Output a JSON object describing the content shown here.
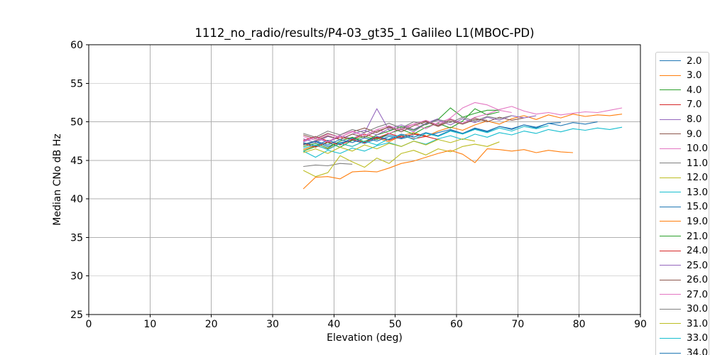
{
  "figure": {
    "background": "#ffffff",
    "text_color": "#000000"
  },
  "chart_data": {
    "type": "line",
    "title": "1112_no_radio/results/P4-03_gt35_1 Galileo L1(MBOC-PD)",
    "xlabel": "Elevation (deg)",
    "ylabel": "Median CNo dB Hz",
    "xlim": [
      0,
      90
    ],
    "ylim": [
      25,
      60
    ],
    "xticks": [
      0,
      10,
      20,
      30,
      40,
      50,
      60,
      70,
      80,
      90
    ],
    "yticks": [
      25,
      30,
      35,
      40,
      45,
      50,
      55,
      60
    ],
    "grid": true,
    "grid_color": "#b0b0b0",
    "spine_color": "#000000",
    "legend_position": "right-outside",
    "legend_clipped_at_bottom": true,
    "series": [
      {
        "name": "2.0",
        "color": "#1f77b4",
        "x0": 35,
        "dx": 2,
        "values": [
          47.0,
          47.4,
          46.8,
          47.3,
          47.6,
          47.2,
          47.8,
          48.3,
          47.9,
          48.4,
          48.1,
          48.6,
          49.0,
          48.5,
          49.2,
          48.8,
          49.4,
          49.1,
          49.6,
          49.3,
          49.8,
          49.5,
          49.9,
          49.7,
          50.0
        ]
      },
      {
        "name": "3.0",
        "color": "#ff7f0e",
        "x0": 35,
        "dx": 2,
        "values": [
          46.4,
          46.9,
          46.5,
          47.2,
          46.8,
          47.5,
          47.9,
          47.4,
          48.2,
          48.6,
          48.1,
          48.8,
          49.3,
          48.9,
          49.6,
          50.1,
          49.7,
          50.4,
          50.8,
          50.3,
          50.9,
          50.5,
          51.0,
          50.7,
          50.9,
          50.8,
          51.0
        ]
      },
      {
        "name": "4.0",
        "color": "#2ca02c",
        "x0": 35,
        "dx": 2,
        "values": [
          46.2,
          46.8,
          47.3,
          46.7,
          47.6,
          48.1,
          47.7,
          48.5,
          49.0,
          48.4,
          49.3,
          49.8,
          49.2,
          50.1,
          51.7,
          50.9,
          51.3
        ]
      },
      {
        "name": "7.0",
        "color": "#d62728",
        "x0": 35,
        "dx": 2,
        "values": [
          47.6,
          48.1,
          47.5,
          48.0,
          47.7,
          48.4,
          47.9,
          48.5,
          48.0,
          48.4,
          48.2
        ]
      },
      {
        "name": "8.0",
        "color": "#9467bd",
        "x0": 35,
        "dx": 2,
        "values": [
          47.4,
          48.0,
          47.3,
          48.2,
          47.8,
          48.6,
          51.7,
          48.9,
          49.4,
          48.7,
          49.8,
          50.4
        ]
      },
      {
        "name": "9.0",
        "color": "#8c564b",
        "x0": 35,
        "dx": 2,
        "values": [
          48.3,
          47.8,
          48.5,
          48.0,
          48.7,
          49.2,
          48.6,
          49.4,
          49.0,
          49.7,
          50.1,
          49.5,
          50.3,
          49.8,
          50.5,
          50.0,
          50.6,
          50.2,
          50.5
        ]
      },
      {
        "name": "10.0",
        "color": "#e377c2",
        "x0": 35,
        "dx": 2,
        "values": [
          48.1,
          47.6,
          48.4,
          48.0,
          48.7,
          48.2,
          49.0,
          48.5,
          49.2,
          49.7,
          49.1,
          49.9,
          50.4,
          49.8,
          50.6,
          51.0,
          51.6,
          52.0,
          51.4,
          51.0,
          51.2,
          50.9,
          51.1,
          51.3,
          51.2,
          51.5,
          51.8
        ]
      },
      {
        "name": "11.0",
        "color": "#7f7f7f",
        "x0": 35,
        "dx": 2,
        "values": [
          44.2,
          44.4,
          44.3,
          44.6,
          44.5
        ]
      },
      {
        "name": "12.0",
        "color": "#bcbd22",
        "x0": 35,
        "dx": 2,
        "values": [
          43.7,
          42.9,
          43.4,
          45.6,
          44.8,
          44.1,
          45.3,
          44.6,
          45.9,
          46.3,
          45.7,
          46.5,
          46.1,
          46.8,
          47.1,
          46.8,
          47.4
        ]
      },
      {
        "name": "13.0",
        "color": "#17becf",
        "x0": 35,
        "dx": 2,
        "values": [
          46.2,
          45.4,
          46.3,
          45.9,
          46.6,
          46.2,
          46.9,
          47.3,
          46.8,
          47.5,
          47.1,
          47.8,
          48.2,
          47.7,
          48.4,
          48.0,
          48.6,
          48.3,
          48.8,
          48.5,
          49.0,
          48.7,
          49.1,
          48.9,
          49.2,
          49.0,
          49.3
        ]
      },
      {
        "name": "15.0",
        "color": "#1f77b4",
        "x0": 35,
        "dx": 2,
        "values": [
          47.3,
          46.9,
          47.6,
          47.1,
          47.9,
          47.4,
          48.1,
          47.7,
          48.4,
          48.0,
          48.6,
          48.2,
          48.9,
          48.5,
          49.1,
          48.7,
          49.4,
          49.0,
          49.6,
          49.2,
          49.8,
          49.9
        ]
      },
      {
        "name": "19.0",
        "color": "#ff7f0e",
        "x0": 35,
        "dx": 2,
        "values": [
          41.3,
          42.8,
          42.9,
          42.6,
          43.5,
          43.6,
          43.5,
          44.0,
          44.6,
          44.9,
          45.4,
          45.9,
          46.3,
          45.8,
          44.7,
          46.5,
          46.4,
          46.2,
          46.4,
          46.0,
          46.3,
          46.1,
          46.0
        ]
      },
      {
        "name": "21.0",
        "color": "#2ca02c",
        "x0": 35,
        "dx": 2,
        "values": [
          46.8,
          47.2,
          46.6,
          47.5,
          48.0,
          47.4,
          48.3,
          48.8,
          49.4,
          48.9,
          49.7,
          50.3,
          51.8,
          50.6,
          51.1,
          51.5,
          51.5
        ]
      },
      {
        "name": "24.0",
        "color": "#d62728",
        "x0": 35,
        "dx": 2,
        "values": [
          47.2,
          46.7,
          47.4,
          47.0,
          47.7,
          47.3,
          48.0,
          47.6,
          48.2,
          47.8,
          48.1,
          47.7
        ]
      },
      {
        "name": "25.0",
        "color": "#9467bd",
        "x0": 35,
        "dx": 2,
        "values": [
          47.8,
          47.3,
          48.1,
          47.7,
          48.4,
          48.9,
          48.3,
          49.1,
          49.6,
          49.0,
          49.8,
          50.2,
          49.6,
          50.4,
          49.9,
          50.6,
          50.2,
          50.8,
          50.5,
          50.8
        ]
      },
      {
        "name": "26.0",
        "color": "#8c564b",
        "x0": 35,
        "dx": 2,
        "values": [
          47.0,
          47.5,
          48.2,
          47.7,
          48.4,
          48.0,
          48.8,
          49.3,
          48.7,
          49.5,
          50.0,
          49.4,
          50.1,
          49.7,
          50.3,
          50.2
        ]
      },
      {
        "name": "27.0",
        "color": "#e377c2",
        "x0": 35,
        "dx": 2,
        "values": [
          47.5,
          48.0,
          47.4,
          48.3,
          48.8,
          48.2,
          49.0,
          49.5,
          48.9,
          49.7,
          50.2,
          49.6,
          50.5,
          51.8,
          52.5,
          52.2,
          51.5,
          51.2
        ]
      },
      {
        "name": "30.0",
        "color": "#7f7f7f",
        "x0": 35,
        "dx": 2,
        "values": [
          48.5,
          48.0,
          48.8,
          48.3,
          49.0,
          48.6,
          49.3,
          49.8,
          49.2,
          50.0,
          49.6,
          50.3,
          49.9,
          50.6,
          50.1,
          50.7,
          50.4,
          50.8
        ]
      },
      {
        "name": "31.0",
        "color": "#bcbd22",
        "x0": 35,
        "dx": 2,
        "values": [
          46.0,
          46.5,
          45.9,
          46.7,
          46.2,
          47.0,
          46.5,
          47.2,
          46.8,
          47.5,
          47.0,
          47.7,
          47.3,
          47.8,
          47.5
        ]
      },
      {
        "name": "33.0",
        "color": "#17becf",
        "x0": 35,
        "dx": 2,
        "values": [
          46.6,
          47.0,
          46.4,
          47.2,
          46.8,
          47.5,
          47.0,
          47.8,
          48.3,
          47.7,
          48.5,
          48.1,
          48.8,
          48.4,
          49.0,
          48.6,
          49.2,
          48.8,
          49.4,
          49.1,
          49.5
        ]
      },
      {
        "name": "34.0",
        "color": "#1f77b4",
        "x0": 35,
        "dx": 2,
        "values": [
          47.1,
          47.5,
          47.0,
          47.7,
          47.3,
          47.9,
          47.5,
          48.1,
          47.8,
          48.2
        ]
      }
    ]
  }
}
